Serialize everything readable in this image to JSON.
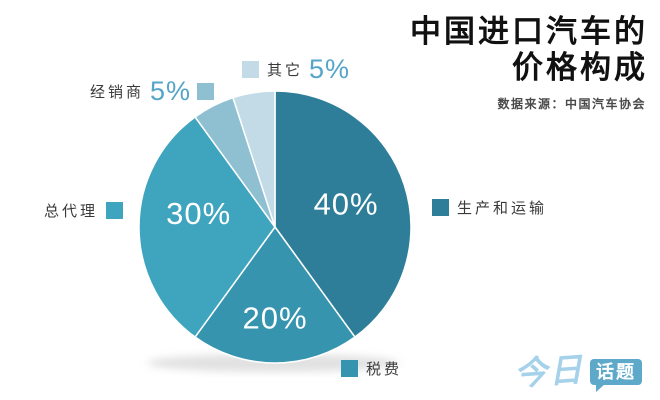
{
  "title": {
    "line1": "中国进口汽车的",
    "line2": "价格构成",
    "source": "数据来源：中国汽车协会"
  },
  "chart_data": {
    "type": "pie",
    "title": "中国进口汽车的价格构成",
    "source_note": "数据来源：中国汽车协会",
    "start_angle_deg": 0,
    "direction": "clockwise",
    "slices": [
      {
        "label": "生产和运输",
        "value": 40,
        "percent_label": "40%",
        "color": "#2f7e99"
      },
      {
        "label": "税费",
        "value": 20,
        "percent_label": "20%",
        "color": "#3794af"
      },
      {
        "label": "总代理",
        "value": 30,
        "percent_label": "30%",
        "color": "#3fa5bf"
      },
      {
        "label": "经销商",
        "value": 5,
        "percent_label": "5%",
        "color": "#8fc0d2"
      },
      {
        "label": "其它",
        "value": 5,
        "percent_label": "5%",
        "color": "#c2dbe7"
      }
    ]
  },
  "logo": {
    "part1": "今日",
    "part2": "话题"
  },
  "colors": {
    "percent_text": "#55a5c8",
    "label_text": "#3a3a3a",
    "pie_label_text": "#ffffff",
    "logo_script": "#a5d2ea",
    "logo_bubble": "#5ea9ca"
  }
}
